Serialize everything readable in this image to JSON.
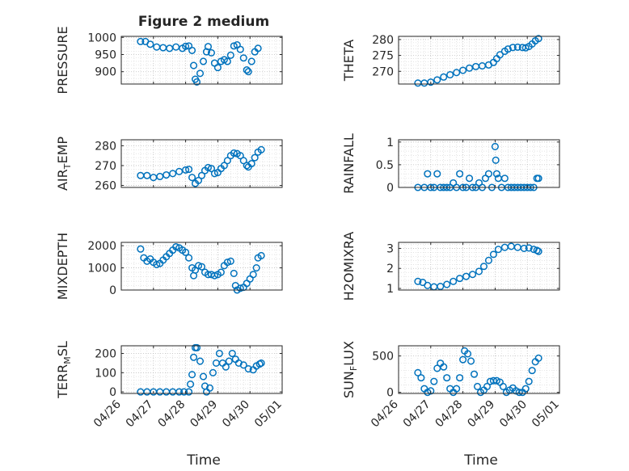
{
  "figure": {
    "title": "Figure 2 medium",
    "xlabel": "Time",
    "marker_color": "#0072BD",
    "grid": true,
    "minor_grid": true
  },
  "chart_data": [
    {
      "type": "scatter",
      "name": "pressure",
      "ylabel": {
        "main": "PRESSURE"
      },
      "yticks": [
        900,
        950,
        1000
      ],
      "ylim": [
        864,
        1003
      ],
      "xticks": [
        "04/26",
        "04/27",
        "04/28",
        "04/29",
        "04/30",
        "05/01"
      ],
      "show_xticks": false,
      "points": [
        [
          0.6,
          988
        ],
        [
          0.75,
          988
        ],
        [
          0.9,
          980
        ],
        [
          1.1,
          972
        ],
        [
          1.3,
          970
        ],
        [
          1.5,
          968
        ],
        [
          1.7,
          972
        ],
        [
          1.9,
          968
        ],
        [
          2.0,
          974
        ],
        [
          2.1,
          975
        ],
        [
          2.2,
          962
        ],
        [
          2.25,
          918
        ],
        [
          2.3,
          878
        ],
        [
          2.35,
          870
        ],
        [
          2.45,
          895
        ],
        [
          2.55,
          930
        ],
        [
          2.65,
          958
        ],
        [
          2.7,
          973
        ],
        [
          2.8,
          955
        ],
        [
          2.9,
          925
        ],
        [
          3.0,
          912
        ],
        [
          3.1,
          930
        ],
        [
          3.2,
          935
        ],
        [
          3.3,
          930
        ],
        [
          3.4,
          948
        ],
        [
          3.5,
          975
        ],
        [
          3.6,
          978
        ],
        [
          3.7,
          965
        ],
        [
          3.8,
          940
        ],
        [
          3.9,
          905
        ],
        [
          3.95,
          900
        ],
        [
          4.05,
          930
        ],
        [
          4.15,
          958
        ],
        [
          4.25,
          968
        ]
      ]
    },
    {
      "type": "scatter",
      "name": "theta",
      "ylabel": {
        "main": "THETA"
      },
      "yticks": [
        270,
        275,
        280
      ],
      "ylim": [
        266,
        281
      ],
      "xticks": [
        "04/26",
        "04/27",
        "04/28",
        "04/29",
        "04/30",
        "05/01"
      ],
      "show_xticks": false,
      "points": [
        [
          0.6,
          266.3
        ],
        [
          0.8,
          266.3
        ],
        [
          1.0,
          266.6
        ],
        [
          1.2,
          267.3
        ],
        [
          1.4,
          268.2
        ],
        [
          1.6,
          268.9
        ],
        [
          1.8,
          269.6
        ],
        [
          2.0,
          270.3
        ],
        [
          2.2,
          271.0
        ],
        [
          2.4,
          271.5
        ],
        [
          2.6,
          271.7
        ],
        [
          2.8,
          272.0
        ],
        [
          2.95,
          272.8
        ],
        [
          3.05,
          274.0
        ],
        [
          3.15,
          275.2
        ],
        [
          3.3,
          276.3
        ],
        [
          3.4,
          277.0
        ],
        [
          3.55,
          277.5
        ],
        [
          3.7,
          277.6
        ],
        [
          3.85,
          277.5
        ],
        [
          3.95,
          277.4
        ],
        [
          4.05,
          277.8
        ],
        [
          4.15,
          278.6
        ],
        [
          4.25,
          279.6
        ],
        [
          4.35,
          280.3
        ]
      ]
    },
    {
      "type": "scatter",
      "name": "air_temp",
      "ylabel": {
        "main": "AIR",
        "sub": "T",
        "tail": "EMP"
      },
      "yticks": [
        260,
        270,
        280
      ],
      "ylim": [
        259,
        283
      ],
      "xticks": [
        "04/26",
        "04/27",
        "04/28",
        "04/29",
        "04/30",
        "05/01"
      ],
      "show_xticks": false,
      "points": [
        [
          0.6,
          265.0
        ],
        [
          0.8,
          265.0
        ],
        [
          1.0,
          264.0
        ],
        [
          1.2,
          264.5
        ],
        [
          1.4,
          265.3
        ],
        [
          1.6,
          266.0
        ],
        [
          1.8,
          267.0
        ],
        [
          2.0,
          267.8
        ],
        [
          2.1,
          268.1
        ],
        [
          2.2,
          264.0
        ],
        [
          2.3,
          261.0
        ],
        [
          2.4,
          262.5
        ],
        [
          2.5,
          265.0
        ],
        [
          2.6,
          267.5
        ],
        [
          2.7,
          269.0
        ],
        [
          2.8,
          268.5
        ],
        [
          2.9,
          266.0
        ],
        [
          3.0,
          266.5
        ],
        [
          3.1,
          268.5
        ],
        [
          3.2,
          270.0
        ],
        [
          3.3,
          272.5
        ],
        [
          3.4,
          275.0
        ],
        [
          3.5,
          276.3
        ],
        [
          3.6,
          276.0
        ],
        [
          3.7,
          275.0
        ],
        [
          3.8,
          272.5
        ],
        [
          3.9,
          270.0
        ],
        [
          3.95,
          269.3
        ],
        [
          4.05,
          271.0
        ],
        [
          4.15,
          274.0
        ],
        [
          4.25,
          276.8
        ],
        [
          4.35,
          278.0
        ]
      ]
    },
    {
      "type": "scatter",
      "name": "rainfall",
      "ylabel": {
        "main": "RAINFALL"
      },
      "yticks": [
        0,
        0.5,
        1
      ],
      "ylim": [
        0,
        1.05
      ],
      "xticks": [
        "04/26",
        "04/27",
        "04/28",
        "04/29",
        "04/30",
        "05/01"
      ],
      "show_xticks": false,
      "points": [
        [
          0.6,
          0
        ],
        [
          0.8,
          0
        ],
        [
          0.9,
          0.3
        ],
        [
          1.0,
          0
        ],
        [
          1.1,
          0
        ],
        [
          1.2,
          0.3
        ],
        [
          1.3,
          0
        ],
        [
          1.4,
          0
        ],
        [
          1.5,
          0
        ],
        [
          1.6,
          0
        ],
        [
          1.7,
          0.1
        ],
        [
          1.8,
          0
        ],
        [
          1.9,
          0.3
        ],
        [
          2.0,
          0
        ],
        [
          2.1,
          0
        ],
        [
          2.2,
          0.2
        ],
        [
          2.3,
          0
        ],
        [
          2.4,
          0
        ],
        [
          2.5,
          0.1
        ],
        [
          2.6,
          0
        ],
        [
          2.7,
          0.2
        ],
        [
          2.8,
          0.3
        ],
        [
          2.9,
          0
        ],
        [
          3.0,
          0.9
        ],
        [
          3.02,
          0.6
        ],
        [
          3.05,
          0.3
        ],
        [
          3.1,
          0.2
        ],
        [
          3.2,
          0
        ],
        [
          3.3,
          0.2
        ],
        [
          3.4,
          0
        ],
        [
          3.5,
          0
        ],
        [
          3.6,
          0
        ],
        [
          3.7,
          0
        ],
        [
          3.8,
          0
        ],
        [
          3.9,
          0
        ],
        [
          4.0,
          0
        ],
        [
          4.1,
          0
        ],
        [
          4.2,
          0
        ],
        [
          4.3,
          0.2
        ],
        [
          4.35,
          0.2
        ]
      ]
    },
    {
      "type": "scatter",
      "name": "mixdepth",
      "ylabel": {
        "main": "MIXDEPTH"
      },
      "yticks": [
        0,
        1000,
        2000
      ],
      "ylim": [
        0,
        2150
      ],
      "xticks": [
        "04/26",
        "04/27",
        "04/28",
        "04/29",
        "04/30",
        "05/01"
      ],
      "show_xticks": false,
      "points": [
        [
          0.6,
          1850
        ],
        [
          0.7,
          1450
        ],
        [
          0.8,
          1300
        ],
        [
          0.9,
          1400
        ],
        [
          1.0,
          1250
        ],
        [
          1.1,
          1150
        ],
        [
          1.2,
          1200
        ],
        [
          1.3,
          1350
        ],
        [
          1.4,
          1500
        ],
        [
          1.5,
          1650
        ],
        [
          1.6,
          1800
        ],
        [
          1.7,
          1950
        ],
        [
          1.8,
          1900
        ],
        [
          1.9,
          1800
        ],
        [
          2.0,
          1700
        ],
        [
          2.1,
          1450
        ],
        [
          2.2,
          1000
        ],
        [
          2.25,
          650
        ],
        [
          2.3,
          900
        ],
        [
          2.4,
          1100
        ],
        [
          2.5,
          1050
        ],
        [
          2.6,
          800
        ],
        [
          2.7,
          700
        ],
        [
          2.8,
          700
        ],
        [
          2.9,
          650
        ],
        [
          3.0,
          700
        ],
        [
          3.1,
          800
        ],
        [
          3.2,
          1100
        ],
        [
          3.3,
          1250
        ],
        [
          3.4,
          1300
        ],
        [
          3.5,
          750
        ],
        [
          3.55,
          200
        ],
        [
          3.6,
          0
        ],
        [
          3.7,
          80
        ],
        [
          3.8,
          120
        ],
        [
          3.9,
          300
        ],
        [
          4.0,
          500
        ],
        [
          4.1,
          700
        ],
        [
          4.2,
          1000
        ],
        [
          4.25,
          1450
        ],
        [
          4.35,
          1550
        ]
      ]
    },
    {
      "type": "scatter",
      "name": "h2omixra",
      "ylabel": {
        "main": "H2OMIXRA"
      },
      "yticks": [
        1,
        2,
        3
      ],
      "ylim": [
        0.92,
        3.3
      ],
      "xticks": [
        "04/26",
        "04/27",
        "04/28",
        "04/29",
        "04/30",
        "05/01"
      ],
      "show_xticks": false,
      "points": [
        [
          0.6,
          1.35
        ],
        [
          0.75,
          1.3
        ],
        [
          0.9,
          1.15
        ],
        [
          1.1,
          1.08
        ],
        [
          1.3,
          1.1
        ],
        [
          1.5,
          1.2
        ],
        [
          1.7,
          1.35
        ],
        [
          1.9,
          1.5
        ],
        [
          2.1,
          1.6
        ],
        [
          2.3,
          1.7
        ],
        [
          2.5,
          1.85
        ],
        [
          2.65,
          2.1
        ],
        [
          2.8,
          2.4
        ],
        [
          2.95,
          2.7
        ],
        [
          3.1,
          2.95
        ],
        [
          3.3,
          3.05
        ],
        [
          3.5,
          3.1
        ],
        [
          3.7,
          3.05
        ],
        [
          3.9,
          3.0
        ],
        [
          4.05,
          3.02
        ],
        [
          4.2,
          2.95
        ],
        [
          4.3,
          2.9
        ],
        [
          4.35,
          2.85
        ]
      ]
    },
    {
      "type": "scatter",
      "name": "terr_msl",
      "ylabel": {
        "main": "TERR",
        "sub": "M",
        "tail": "SL"
      },
      "yticks": [
        0,
        100,
        200
      ],
      "ylim": [
        -8,
        240
      ],
      "xticks": [
        "04/26",
        "04/27",
        "04/28",
        "04/29",
        "04/30",
        "05/01"
      ],
      "show_xticks": true,
      "points": [
        [
          0.6,
          0
        ],
        [
          0.8,
          0
        ],
        [
          1.0,
          0
        ],
        [
          1.2,
          0
        ],
        [
          1.4,
          0
        ],
        [
          1.6,
          0
        ],
        [
          1.8,
          0
        ],
        [
          1.95,
          0
        ],
        [
          2.1,
          0
        ],
        [
          2.15,
          40
        ],
        [
          2.2,
          90
        ],
        [
          2.25,
          180
        ],
        [
          2.3,
          230
        ],
        [
          2.35,
          230
        ],
        [
          2.45,
          160
        ],
        [
          2.55,
          80
        ],
        [
          2.6,
          30
        ],
        [
          2.65,
          0
        ],
        [
          2.75,
          20
        ],
        [
          2.85,
          100
        ],
        [
          2.95,
          150
        ],
        [
          3.05,
          200
        ],
        [
          3.15,
          150
        ],
        [
          3.25,
          130
        ],
        [
          3.35,
          160
        ],
        [
          3.45,
          200
        ],
        [
          3.55,
          170
        ],
        [
          3.65,
          150
        ],
        [
          3.8,
          140
        ],
        [
          3.95,
          120
        ],
        [
          4.1,
          115
        ],
        [
          4.2,
          135
        ],
        [
          4.3,
          145
        ],
        [
          4.35,
          150
        ]
      ]
    },
    {
      "type": "scatter",
      "name": "sun_flux",
      "ylabel": {
        "main": "SUN",
        "sub": "F",
        "tail": "LUX"
      },
      "yticks": [
        0,
        500
      ],
      "ylim": [
        -15,
        640
      ],
      "xticks": [
        "04/26",
        "04/27",
        "04/28",
        "04/29",
        "04/30",
        "05/01"
      ],
      "show_xticks": true,
      "points": [
        [
          0.6,
          270
        ],
        [
          0.7,
          200
        ],
        [
          0.8,
          50
        ],
        [
          0.9,
          0
        ],
        [
          1.0,
          20
        ],
        [
          1.1,
          150
        ],
        [
          1.2,
          330
        ],
        [
          1.3,
          400
        ],
        [
          1.4,
          350
        ],
        [
          1.5,
          200
        ],
        [
          1.6,
          50
        ],
        [
          1.7,
          0
        ],
        [
          1.8,
          50
        ],
        [
          1.9,
          200
        ],
        [
          2.0,
          450
        ],
        [
          2.05,
          570
        ],
        [
          2.15,
          530
        ],
        [
          2.25,
          430
        ],
        [
          2.35,
          250
        ],
        [
          2.45,
          80
        ],
        [
          2.55,
          0
        ],
        [
          2.65,
          30
        ],
        [
          2.75,
          80
        ],
        [
          2.85,
          150
        ],
        [
          2.95,
          160
        ],
        [
          3.05,
          160
        ],
        [
          3.15,
          140
        ],
        [
          3.25,
          80
        ],
        [
          3.35,
          0
        ],
        [
          3.45,
          30
        ],
        [
          3.55,
          60
        ],
        [
          3.65,
          20
        ],
        [
          3.75,
          0
        ],
        [
          3.85,
          0
        ],
        [
          3.95,
          50
        ],
        [
          4.05,
          150
        ],
        [
          4.15,
          300
        ],
        [
          4.25,
          420
        ],
        [
          4.35,
          470
        ]
      ]
    }
  ]
}
